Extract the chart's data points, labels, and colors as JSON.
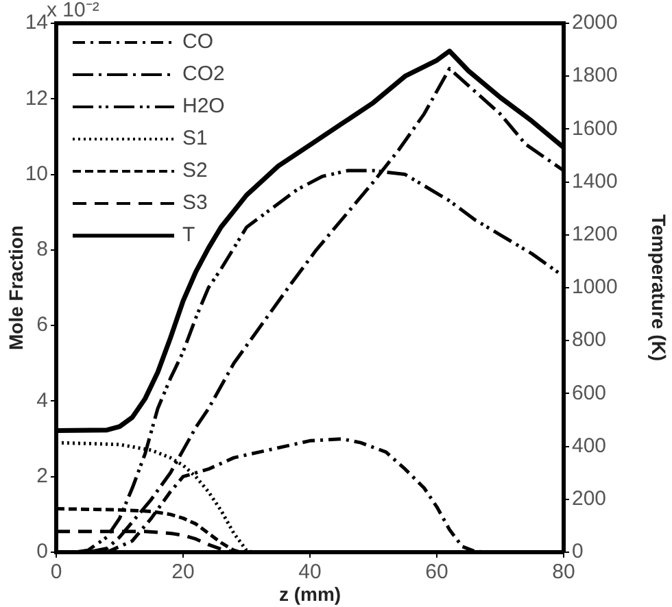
{
  "chart_data": {
    "type": "line",
    "xlabel": "z (mm)",
    "ylabel": "Mole Fraction",
    "y2label": "Temperature (K)",
    "annotations": [
      "x 10⁻²"
    ],
    "xlim": [
      0,
      80
    ],
    "xticks": [
      0,
      20,
      40,
      60,
      80
    ],
    "ylim": [
      0,
      14
    ],
    "yticks": [
      0,
      2,
      4,
      6,
      8,
      10,
      12,
      14
    ],
    "y2lim": [
      0,
      2000
    ],
    "y2ticks": [
      0,
      200,
      400,
      600,
      800,
      1000,
      1200,
      1400,
      1600,
      1800,
      2000
    ],
    "grid": false,
    "legend": "top left",
    "marker": "none",
    "series": [
      {
        "name": "CO",
        "color": "#000000",
        "line_style": "dashed",
        "x": [
          8,
          12,
          15,
          18,
          20,
          24,
          28,
          32,
          36,
          40,
          45,
          48,
          52,
          55,
          58,
          60,
          62,
          64,
          66,
          68
        ],
        "values": [
          0,
          0.3,
          0.9,
          1.6,
          2.0,
          2.2,
          2.5,
          2.65,
          2.8,
          2.95,
          3.0,
          2.9,
          2.65,
          2.2,
          1.7,
          1.2,
          0.6,
          0.15,
          0.02,
          0
        ]
      },
      {
        "name": "CO2",
        "color": "#000000",
        "line_style": "dashed",
        "x": [
          5,
          8,
          10,
          12,
          15,
          18,
          20,
          22,
          24,
          28,
          31,
          34,
          37,
          41,
          45,
          50,
          54,
          58,
          62,
          66,
          70,
          74,
          80
        ],
        "values": [
          0,
          0.1,
          0.4,
          0.8,
          1.4,
          2.1,
          2.7,
          3.3,
          3.8,
          5.0,
          5.7,
          6.4,
          7.1,
          8.0,
          8.8,
          9.8,
          10.65,
          11.6,
          12.8,
          12.2,
          11.6,
          10.8,
          10.1
        ]
      },
      {
        "name": "H2O",
        "color": "#000000",
        "line_style": "dashed",
        "x": [
          3,
          5,
          8,
          10,
          12,
          14,
          16,
          18,
          20,
          22,
          24,
          26,
          30,
          34,
          38,
          42,
          46,
          50,
          55,
          60,
          62,
          66,
          70,
          75,
          80
        ],
        "values": [
          0,
          0.05,
          0.4,
          0.9,
          1.7,
          2.6,
          3.8,
          4.6,
          5.3,
          6.2,
          7.0,
          7.5,
          8.6,
          9.1,
          9.6,
          9.95,
          10.1,
          10.1,
          10.0,
          9.5,
          9.3,
          8.8,
          8.4,
          7.9,
          7.3
        ]
      },
      {
        "name": "S1",
        "color": "#000000",
        "line_style": "dotted",
        "x": [
          0,
          10,
          15,
          18,
          20,
          22,
          24,
          26,
          28,
          30,
          31
        ],
        "values": [
          2.9,
          2.85,
          2.7,
          2.5,
          2.3,
          2.0,
          1.6,
          1.1,
          0.5,
          0.05,
          0
        ]
      },
      {
        "name": "S2",
        "color": "#000000",
        "line_style": "dashed",
        "x": [
          0,
          10,
          15,
          18,
          20,
          22,
          24,
          26,
          28,
          29
        ],
        "values": [
          1.15,
          1.12,
          1.08,
          1.0,
          0.9,
          0.75,
          0.5,
          0.25,
          0.05,
          0
        ]
      },
      {
        "name": "S3",
        "color": "#000000",
        "line_style": "dashed",
        "x": [
          0,
          10,
          14,
          18,
          20,
          22,
          24,
          26,
          28
        ],
        "values": [
          0.55,
          0.55,
          0.55,
          0.5,
          0.45,
          0.35,
          0.2,
          0.08,
          0
        ]
      },
      {
        "name": "T",
        "color": "#000000",
        "line_style": "solid",
        "axis": "y2",
        "x": [
          0,
          8,
          10,
          12,
          14,
          16,
          18,
          20,
          22,
          24,
          26,
          28,
          30,
          35,
          40,
          45,
          50,
          55,
          60,
          62,
          65,
          70,
          75,
          80
        ],
        "values": [
          460,
          462,
          475,
          510,
          580,
          680,
          810,
          950,
          1060,
          1150,
          1230,
          1290,
          1350,
          1460,
          1540,
          1620,
          1700,
          1800,
          1860,
          1895,
          1820,
          1720,
          1630,
          1530
        ]
      }
    ]
  }
}
